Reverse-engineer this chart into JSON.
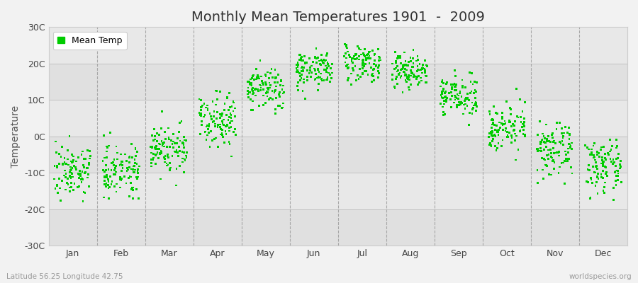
{
  "title": "Monthly Mean Temperatures 1901  -  2009",
  "ylabel": "Temperature",
  "month_labels": [
    "Jan",
    "Feb",
    "Mar",
    "Apr",
    "May",
    "Jun",
    "Jul",
    "Aug",
    "Sep",
    "Oct",
    "Nov",
    "Dec"
  ],
  "ytick_labels": [
    "-30C",
    "-20C",
    "-10C",
    "0C",
    "10C",
    "20C",
    "30C"
  ],
  "ytick_values": [
    -30,
    -20,
    -10,
    0,
    10,
    20,
    30
  ],
  "ylim": [
    -30,
    30
  ],
  "dot_color": "#00CC00",
  "dot_size": 4,
  "background_color": "#F2F2F2",
  "plot_bg_color": "#EBEBEB",
  "band_color_light": "#E8E8E8",
  "band_color_dark": "#DCDCDC",
  "grid_color": "#AAAAAA",
  "dashed_line_color": "#999999",
  "title_fontsize": 14,
  "axis_fontsize": 10,
  "tick_fontsize": 9,
  "legend_label": "Mean Temp",
  "subtitle_left": "Latitude 56.25 Longitude 42.75",
  "subtitle_right": "worldspecies.org",
  "num_years": 109,
  "monthly_means": [
    -9.5,
    -9.0,
    -3.5,
    5.0,
    13.0,
    18.5,
    20.5,
    18.0,
    11.0,
    2.5,
    -4.0,
    -8.5
  ],
  "monthly_stds": [
    3.5,
    3.5,
    3.5,
    3.5,
    3.0,
    2.5,
    2.5,
    2.5,
    2.5,
    3.0,
    3.5,
    3.5
  ]
}
